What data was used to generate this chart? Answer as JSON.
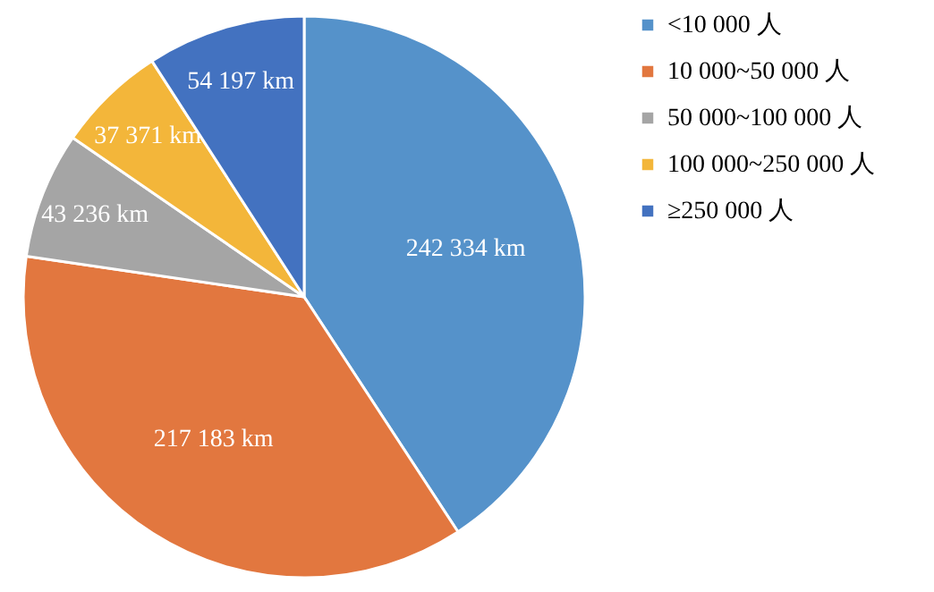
{
  "chart_data": {
    "type": "pie",
    "categories": [
      "<10 000 人",
      "10 000~50 000 人",
      "50 000~100 000 人",
      "100 000~250 000 人",
      "≥250 000 人"
    ],
    "values": [
      242334,
      217183,
      43236,
      37371,
      54197
    ],
    "colors": [
      "#5592ca",
      "#e2773f",
      "#a5a5a5",
      "#f3b63a",
      "#4372c0"
    ],
    "value_labels": [
      "242 334 km",
      "217 183 km",
      "43 236 km",
      "37 371 km",
      "54 197 km"
    ],
    "legend": "right"
  }
}
